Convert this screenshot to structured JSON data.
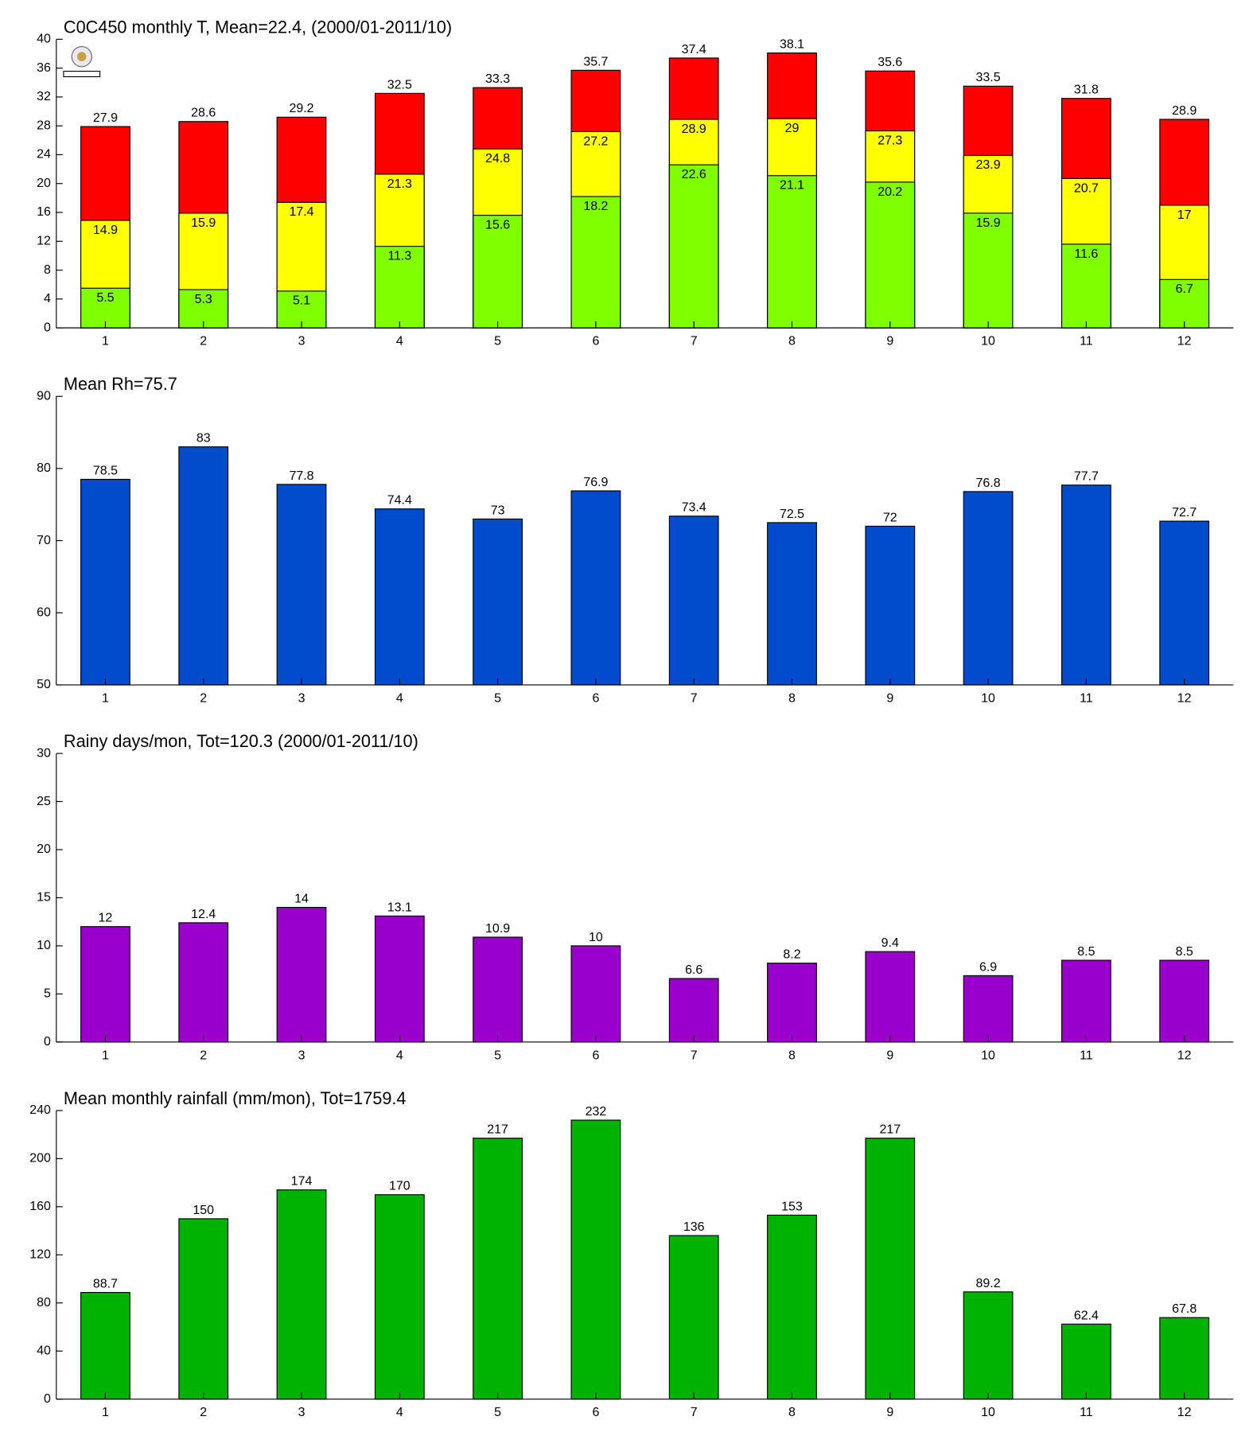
{
  "chart_data": [
    {
      "type": "bar",
      "title": "C0C450 monthly T, Mean=22.4, (2000/01-2011/10)",
      "categories": [
        "1",
        "2",
        "3",
        "4",
        "5",
        "6",
        "7",
        "8",
        "9",
        "10",
        "11",
        "12"
      ],
      "series": [
        {
          "color": "#80ff00",
          "values": [
            5.5,
            5.3,
            5.1,
            11.3,
            15.6,
            18.2,
            22.6,
            21.1,
            20.2,
            15.9,
            11.6,
            6.7
          ]
        },
        {
          "color": "#ffff00",
          "values": [
            14.9,
            15.9,
            17.4,
            21.3,
            24.8,
            27.2,
            28.9,
            29,
            27.3,
            23.9,
            20.7,
            17
          ]
        },
        {
          "color": "#ff0000",
          "values": [
            27.9,
            28.6,
            29.2,
            32.5,
            33.3,
            35.7,
            37.4,
            38.1,
            35.6,
            33.5,
            31.8,
            28.9
          ]
        }
      ],
      "ylim": [
        0,
        40
      ],
      "yticks": [
        0,
        4,
        8,
        12,
        16,
        20,
        24,
        28,
        32,
        36,
        40
      ]
    },
    {
      "type": "bar",
      "title": "Mean Rh=75.7",
      "categories": [
        "1",
        "2",
        "3",
        "4",
        "5",
        "6",
        "7",
        "8",
        "9",
        "10",
        "11",
        "12"
      ],
      "values": [
        78.5,
        83,
        77.8,
        74.4,
        73,
        76.9,
        73.4,
        72.5,
        72,
        76.8,
        77.7,
        72.7
      ],
      "color": "#004ccc",
      "ylim": [
        50,
        90
      ],
      "yticks": [
        50,
        60,
        70,
        80,
        90
      ]
    },
    {
      "type": "bar",
      "title": "Rainy days/mon, Tot=120.3 (2000/01-2011/10)",
      "categories": [
        "1",
        "2",
        "3",
        "4",
        "5",
        "6",
        "7",
        "8",
        "9",
        "10",
        "11",
        "12"
      ],
      "values": [
        12,
        12.4,
        14,
        13.1,
        10.9,
        10,
        6.6,
        8.2,
        9.4,
        6.9,
        8.5,
        8.5
      ],
      "color": "#9900cc",
      "ylim": [
        0,
        30
      ],
      "yticks": [
        0,
        5,
        10,
        15,
        20,
        25,
        30
      ]
    },
    {
      "type": "bar",
      "title": "Mean monthly rainfall (mm/mon), Tot=1759.4",
      "categories": [
        "1",
        "2",
        "3",
        "4",
        "5",
        "6",
        "7",
        "8",
        "9",
        "10",
        "11",
        "12"
      ],
      "values": [
        88.7,
        150,
        174,
        170,
        217,
        232,
        136,
        153,
        217,
        89.2,
        62.4,
        67.8
      ],
      "color": "#00b300",
      "ylim": [
        0,
        240
      ],
      "yticks": [
        0,
        40,
        80,
        120,
        160,
        200,
        240
      ]
    }
  ]
}
